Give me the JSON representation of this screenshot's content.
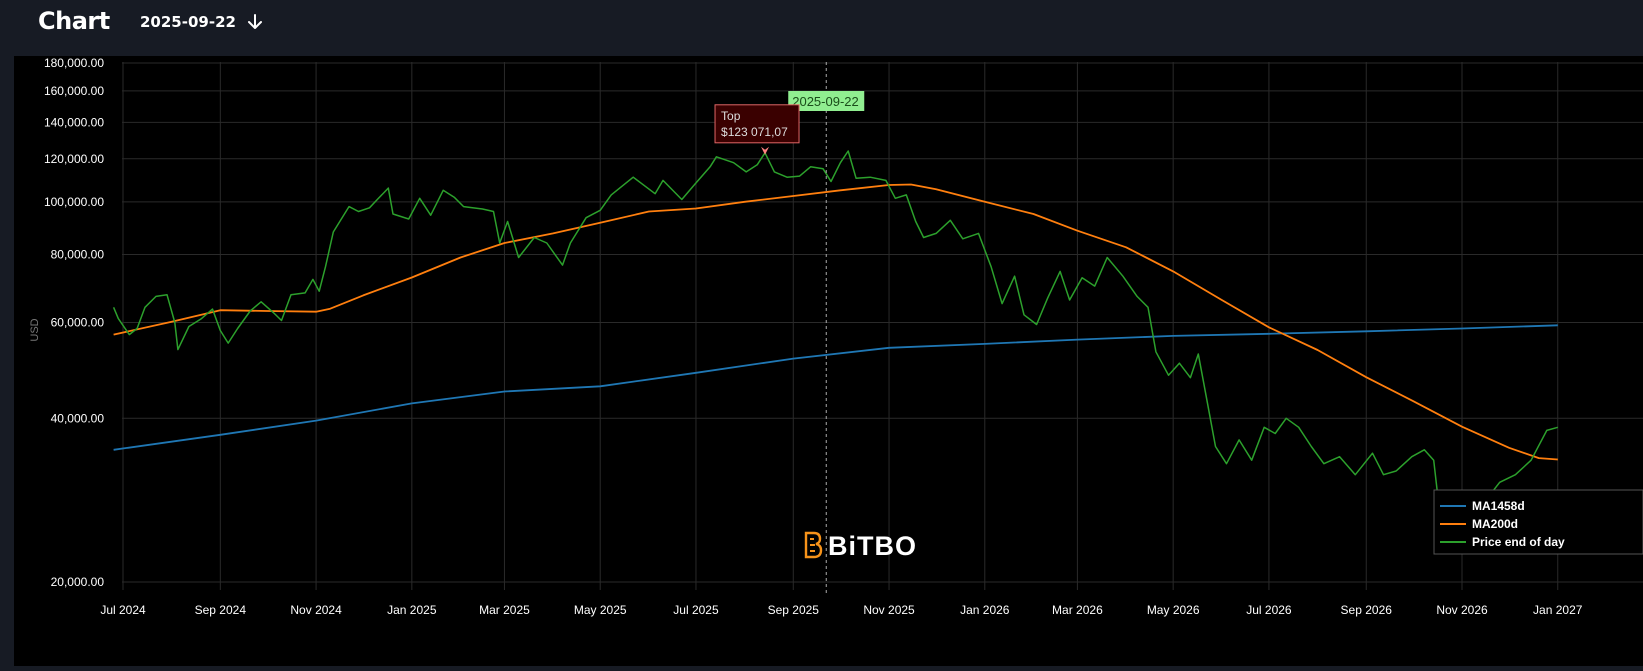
{
  "header": {
    "title": "Chart",
    "date": "2025-09-22"
  },
  "watermark": "BiTBO",
  "tooltip": {
    "label": "Top",
    "value": "$123 071,07"
  },
  "cursor_label": "2025-09-22",
  "colors": {
    "price": "#2ca02c",
    "ma200": "#ff7f0e",
    "ma1458": "#1f77b4",
    "cursor_label_bg": "#90ee90",
    "tooltip_bg": "#3a0000",
    "tooltip_border": "#e06666",
    "logo": "#f7931a"
  },
  "chart_data": {
    "type": "line",
    "title": "",
    "xlabel": "",
    "ylabel": "USD",
    "yscale": "log",
    "ylim": [
      19000,
      180000
    ],
    "xlim": [
      "2024-06-25",
      "2027-01-01"
    ],
    "x_ticks": [
      {
        "date": "2024-07-01",
        "label": "Jul 2024"
      },
      {
        "date": "2024-09-01",
        "label": "Sep 2024"
      },
      {
        "date": "2024-11-01",
        "label": "Nov 2024"
      },
      {
        "date": "2025-01-01",
        "label": "Jan 2025"
      },
      {
        "date": "2025-03-01",
        "label": "Mar 2025"
      },
      {
        "date": "2025-05-01",
        "label": "May 2025"
      },
      {
        "date": "2025-07-01",
        "label": "Jul 2025"
      },
      {
        "date": "2025-09-01",
        "label": "Sep 2025"
      },
      {
        "date": "2025-11-01",
        "label": "Nov 2025"
      },
      {
        "date": "2026-01-01",
        "label": "Jan 2026"
      },
      {
        "date": "2026-03-01",
        "label": "Mar 2026"
      },
      {
        "date": "2026-05-01",
        "label": "May 2026"
      },
      {
        "date": "2026-07-01",
        "label": "Jul 2026"
      },
      {
        "date": "2026-09-01",
        "label": "Sep 2026"
      },
      {
        "date": "2026-11-01",
        "label": "Nov 2026"
      },
      {
        "date": "2027-01-01",
        "label": "Jan 2027"
      }
    ],
    "y_ticks": [
      {
        "value": 20000,
        "label": "20,000.00"
      },
      {
        "value": 40000,
        "label": "40,000.00"
      },
      {
        "value": 60000,
        "label": "60,000.00"
      },
      {
        "value": 80000,
        "label": "80,000.00"
      },
      {
        "value": 100000,
        "label": "100,000.00"
      },
      {
        "value": 120000,
        "label": "120,000.00"
      },
      {
        "value": 140000,
        "label": "140,000.00"
      },
      {
        "value": 160000,
        "label": "160,000.00"
      },
      {
        "value": 180000,
        "label": "180,000.00"
      }
    ],
    "grid": true,
    "legend_position": "bottom-right",
    "marker": {
      "date": "2025-09-22"
    },
    "top_point": {
      "date": "2025-08-14",
      "value": 123071.07
    },
    "series": [
      {
        "name": "MA1458d",
        "key": "ma1458",
        "points": [
          [
            "2024-06-25",
            35000
          ],
          [
            "2024-09-01",
            37300
          ],
          [
            "2024-11-01",
            39600
          ],
          [
            "2025-01-01",
            42600
          ],
          [
            "2025-03-01",
            44800
          ],
          [
            "2025-05-01",
            45800
          ],
          [
            "2025-07-01",
            48500
          ],
          [
            "2025-09-01",
            51500
          ],
          [
            "2025-11-01",
            53900
          ],
          [
            "2026-01-01",
            54800
          ],
          [
            "2026-03-01",
            55800
          ],
          [
            "2026-05-01",
            56700
          ],
          [
            "2026-07-01",
            57200
          ],
          [
            "2026-09-01",
            57800
          ],
          [
            "2026-11-01",
            58500
          ],
          [
            "2027-01-01",
            59300
          ]
        ]
      },
      {
        "name": "MA200d",
        "key": "ma200",
        "points": [
          [
            "2024-06-25",
            57000
          ],
          [
            "2024-08-01",
            60200
          ],
          [
            "2024-09-01",
            63200
          ],
          [
            "2024-10-01",
            63000
          ],
          [
            "2024-11-01",
            62800
          ],
          [
            "2024-11-10",
            63600
          ],
          [
            "2024-12-01",
            67300
          ],
          [
            "2025-01-01",
            72600
          ],
          [
            "2025-02-01",
            79000
          ],
          [
            "2025-03-01",
            84000
          ],
          [
            "2025-04-01",
            87500
          ],
          [
            "2025-05-01",
            91500
          ],
          [
            "2025-06-01",
            96000
          ],
          [
            "2025-07-01",
            97200
          ],
          [
            "2025-08-01",
            100000
          ],
          [
            "2025-09-01",
            102500
          ],
          [
            "2025-10-01",
            105000
          ],
          [
            "2025-11-01",
            107400
          ],
          [
            "2025-11-15",
            107600
          ],
          [
            "2025-12-01",
            105500
          ],
          [
            "2026-01-01",
            100000
          ],
          [
            "2026-02-01",
            95000
          ],
          [
            "2026-03-01",
            88500
          ],
          [
            "2026-04-01",
            82500
          ],
          [
            "2026-05-01",
            74500
          ],
          [
            "2026-06-01",
            66000
          ],
          [
            "2026-07-01",
            58800
          ],
          [
            "2026-08-01",
            53400
          ],
          [
            "2026-09-01",
            47600
          ],
          [
            "2026-10-01",
            43000
          ],
          [
            "2026-11-01",
            38600
          ],
          [
            "2026-12-01",
            35300
          ],
          [
            "2026-12-20",
            33800
          ],
          [
            "2027-01-01",
            33600
          ]
        ]
      },
      {
        "name": "Price end of day",
        "key": "price",
        "points": [
          [
            "2024-06-25",
            64000
          ],
          [
            "2024-06-28",
            61000
          ],
          [
            "2024-07-05",
            57000
          ],
          [
            "2024-07-10",
            58500
          ],
          [
            "2024-07-15",
            64000
          ],
          [
            "2024-07-22",
            67000
          ],
          [
            "2024-07-29",
            67500
          ],
          [
            "2024-08-03",
            60000
          ],
          [
            "2024-08-05",
            53500
          ],
          [
            "2024-08-12",
            59000
          ],
          [
            "2024-08-20",
            61000
          ],
          [
            "2024-08-27",
            63500
          ],
          [
            "2024-09-01",
            58000
          ],
          [
            "2024-09-06",
            55000
          ],
          [
            "2024-09-12",
            58500
          ],
          [
            "2024-09-20",
            63000
          ],
          [
            "2024-09-27",
            65500
          ],
          [
            "2024-10-05",
            62500
          ],
          [
            "2024-10-10",
            60500
          ],
          [
            "2024-10-16",
            67500
          ],
          [
            "2024-10-25",
            68000
          ],
          [
            "2024-10-30",
            72000
          ],
          [
            "2024-11-03",
            68500
          ],
          [
            "2024-11-07",
            76000
          ],
          [
            "2024-11-12",
            88000
          ],
          [
            "2024-11-22",
            98000
          ],
          [
            "2024-11-28",
            96000
          ],
          [
            "2024-12-05",
            97500
          ],
          [
            "2024-12-10",
            101000
          ],
          [
            "2024-12-17",
            106000
          ],
          [
            "2024-12-20",
            95000
          ],
          [
            "2024-12-30",
            93000
          ],
          [
            "2025-01-06",
            101500
          ],
          [
            "2025-01-13",
            94500
          ],
          [
            "2025-01-21",
            105000
          ],
          [
            "2025-01-28",
            102000
          ],
          [
            "2025-02-03",
            98000
          ],
          [
            "2025-02-15",
            97000
          ],
          [
            "2025-02-22",
            96000
          ],
          [
            "2025-02-26",
            84000
          ],
          [
            "2025-03-03",
            92000
          ],
          [
            "2025-03-10",
            79000
          ],
          [
            "2025-03-20",
            86000
          ],
          [
            "2025-03-28",
            84000
          ],
          [
            "2025-04-07",
            76500
          ],
          [
            "2025-04-12",
            84000
          ],
          [
            "2025-04-22",
            93500
          ],
          [
            "2025-05-01",
            96500
          ],
          [
            "2025-05-08",
            103000
          ],
          [
            "2025-05-22",
            111000
          ],
          [
            "2025-06-05",
            103500
          ],
          [
            "2025-06-10",
            109500
          ],
          [
            "2025-06-22",
            101000
          ],
          [
            "2025-06-30",
            107500
          ],
          [
            "2025-07-10",
            116000
          ],
          [
            "2025-07-14",
            121000
          ],
          [
            "2025-07-25",
            118000
          ],
          [
            "2025-08-02",
            113500
          ],
          [
            "2025-08-09",
            117000
          ],
          [
            "2025-08-14",
            123071
          ],
          [
            "2025-08-20",
            113500
          ],
          [
            "2025-08-28",
            111000
          ],
          [
            "2025-09-05",
            111500
          ],
          [
            "2025-09-12",
            116000
          ],
          [
            "2025-09-20",
            115000
          ],
          [
            "2025-09-25",
            109000
          ],
          [
            "2025-10-01",
            118000
          ],
          [
            "2025-10-06",
            124000
          ],
          [
            "2025-10-11",
            110500
          ],
          [
            "2025-10-20",
            111000
          ],
          [
            "2025-10-30",
            109500
          ],
          [
            "2025-11-05",
            101500
          ],
          [
            "2025-11-12",
            103000
          ],
          [
            "2025-11-18",
            92000
          ],
          [
            "2025-11-23",
            86000
          ],
          [
            "2025-12-01",
            87500
          ],
          [
            "2025-12-10",
            92500
          ],
          [
            "2025-12-18",
            85500
          ],
          [
            "2025-12-28",
            87500
          ],
          [
            "2026-01-05",
            76000
          ],
          [
            "2026-01-12",
            65000
          ],
          [
            "2026-01-20",
            73000
          ],
          [
            "2026-01-26",
            62000
          ],
          [
            "2026-02-03",
            59500
          ],
          [
            "2026-02-10",
            66500
          ],
          [
            "2026-02-18",
            74500
          ],
          [
            "2026-02-24",
            66000
          ],
          [
            "2026-03-04",
            72500
          ],
          [
            "2026-03-12",
            70000
          ],
          [
            "2026-03-20",
            79000
          ],
          [
            "2026-03-30",
            73000
          ],
          [
            "2026-04-08",
            67000
          ],
          [
            "2026-04-15",
            64000
          ],
          [
            "2026-04-20",
            53000
          ],
          [
            "2026-04-28",
            48000
          ],
          [
            "2026-05-05",
            50500
          ],
          [
            "2026-05-12",
            47500
          ],
          [
            "2026-05-17",
            52500
          ],
          [
            "2026-05-22",
            44000
          ],
          [
            "2026-05-28",
            35500
          ],
          [
            "2026-06-04",
            33000
          ],
          [
            "2026-06-12",
            36500
          ],
          [
            "2026-06-20",
            33500
          ],
          [
            "2026-06-28",
            38500
          ],
          [
            "2026-07-05",
            37500
          ],
          [
            "2026-07-12",
            40000
          ],
          [
            "2026-07-20",
            38500
          ],
          [
            "2026-07-28",
            35500
          ],
          [
            "2026-08-05",
            33000
          ],
          [
            "2026-08-15",
            34000
          ],
          [
            "2026-08-25",
            31500
          ],
          [
            "2026-09-05",
            34500
          ],
          [
            "2026-09-12",
            31500
          ],
          [
            "2026-09-20",
            32000
          ],
          [
            "2026-09-30",
            34000
          ],
          [
            "2026-10-08",
            35000
          ],
          [
            "2026-10-14",
            33500
          ],
          [
            "2026-10-18",
            26500
          ],
          [
            "2026-10-25",
            25000
          ],
          [
            "2026-11-05",
            24500
          ],
          [
            "2026-11-15",
            28000
          ],
          [
            "2026-11-25",
            30500
          ],
          [
            "2026-12-05",
            31500
          ],
          [
            "2026-12-15",
            33500
          ],
          [
            "2026-12-25",
            38000
          ],
          [
            "2027-01-01",
            38500
          ]
        ]
      }
    ]
  }
}
